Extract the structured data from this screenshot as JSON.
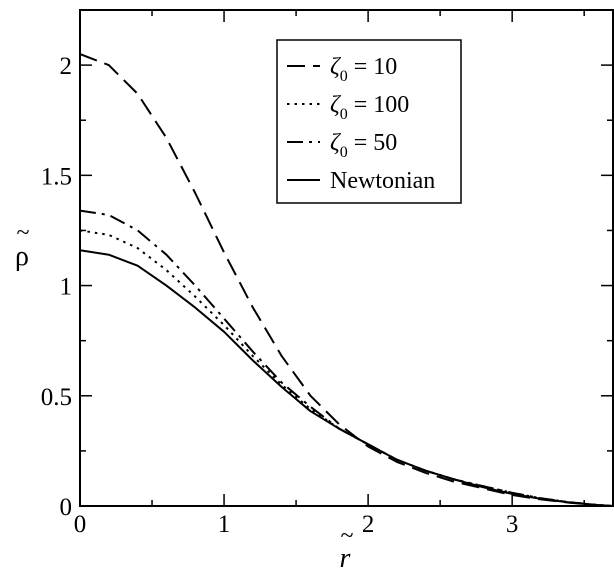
{
  "chart_data": {
    "type": "line",
    "xlabel": "r",
    "xlabel_accent": "~",
    "ylabel": "ρ",
    "ylabel_accent": "~",
    "xlim": [
      0,
      3.7
    ],
    "ylim": [
      0,
      2.25
    ],
    "x_ticks": [
      {
        "value": 0,
        "label": "0"
      },
      {
        "value": 1,
        "label": "1"
      },
      {
        "value": 2,
        "label": "2"
      },
      {
        "value": 3,
        "label": "3"
      }
    ],
    "y_ticks": [
      {
        "value": 0,
        "label": "0"
      },
      {
        "value": 0.5,
        "label": "0.5"
      },
      {
        "value": 1,
        "label": "1"
      },
      {
        "value": 1.5,
        "label": "1.5"
      },
      {
        "value": 2,
        "label": "2"
      }
    ],
    "legend_position": "top-right",
    "series": [
      {
        "name": "ζ0 = 10",
        "legend_symbol": "ζ",
        "legend_subscript": "0",
        "legend_rest": " = 10",
        "style": "dashed",
        "x": [
          0,
          0.2,
          0.4,
          0.6,
          0.8,
          1.0,
          1.2,
          1.4,
          1.6,
          1.8,
          2.0,
          2.2,
          2.4,
          2.6,
          2.8,
          3.0,
          3.2,
          3.4,
          3.6,
          3.7
        ],
        "y": [
          2.05,
          2.0,
          1.87,
          1.67,
          1.42,
          1.15,
          0.9,
          0.68,
          0.5,
          0.37,
          0.27,
          0.2,
          0.15,
          0.11,
          0.08,
          0.05,
          0.03,
          0.015,
          0.004,
          0.0
        ]
      },
      {
        "name": "ζ0 = 100",
        "legend_symbol": "ζ",
        "legend_subscript": "0",
        "legend_rest": " = 100",
        "style": "dotted",
        "x": [
          0,
          0.2,
          0.4,
          0.6,
          0.8,
          1.0,
          1.2,
          1.4,
          1.6,
          1.8,
          2.0,
          2.2,
          2.4,
          2.6,
          2.8,
          3.0,
          3.2,
          3.4,
          3.6,
          3.7
        ],
        "y": [
          1.25,
          1.23,
          1.17,
          1.07,
          0.95,
          0.82,
          0.68,
          0.55,
          0.44,
          0.35,
          0.28,
          0.21,
          0.16,
          0.12,
          0.09,
          0.06,
          0.035,
          0.017,
          0.004,
          0.0
        ]
      },
      {
        "name": "ζ0 = 50",
        "legend_symbol": "ζ",
        "legend_subscript": "0",
        "legend_rest": " = 50",
        "style": "dash-dot",
        "x": [
          0,
          0.2,
          0.4,
          0.6,
          0.8,
          1.0,
          1.2,
          1.4,
          1.6,
          1.8,
          2.0,
          2.2,
          2.4,
          2.6,
          2.8,
          3.0,
          3.2,
          3.4,
          3.6,
          3.7
        ],
        "y": [
          1.34,
          1.32,
          1.25,
          1.14,
          1.0,
          0.85,
          0.7,
          0.56,
          0.45,
          0.35,
          0.28,
          0.21,
          0.16,
          0.12,
          0.09,
          0.06,
          0.035,
          0.017,
          0.004,
          0.0
        ]
      },
      {
        "name": "Newtonian",
        "legend_symbol": "",
        "legend_subscript": "",
        "legend_rest": "Newtonian",
        "style": "solid",
        "x": [
          0,
          0.2,
          0.4,
          0.6,
          0.8,
          1.0,
          1.2,
          1.4,
          1.6,
          1.8,
          2.0,
          2.2,
          2.4,
          2.6,
          2.8,
          3.0,
          3.2,
          3.4,
          3.6,
          3.7
        ],
        "y": [
          1.16,
          1.14,
          1.09,
          1.0,
          0.9,
          0.79,
          0.66,
          0.54,
          0.43,
          0.35,
          0.28,
          0.21,
          0.16,
          0.12,
          0.085,
          0.055,
          0.032,
          0.016,
          0.004,
          0.0
        ]
      }
    ]
  }
}
